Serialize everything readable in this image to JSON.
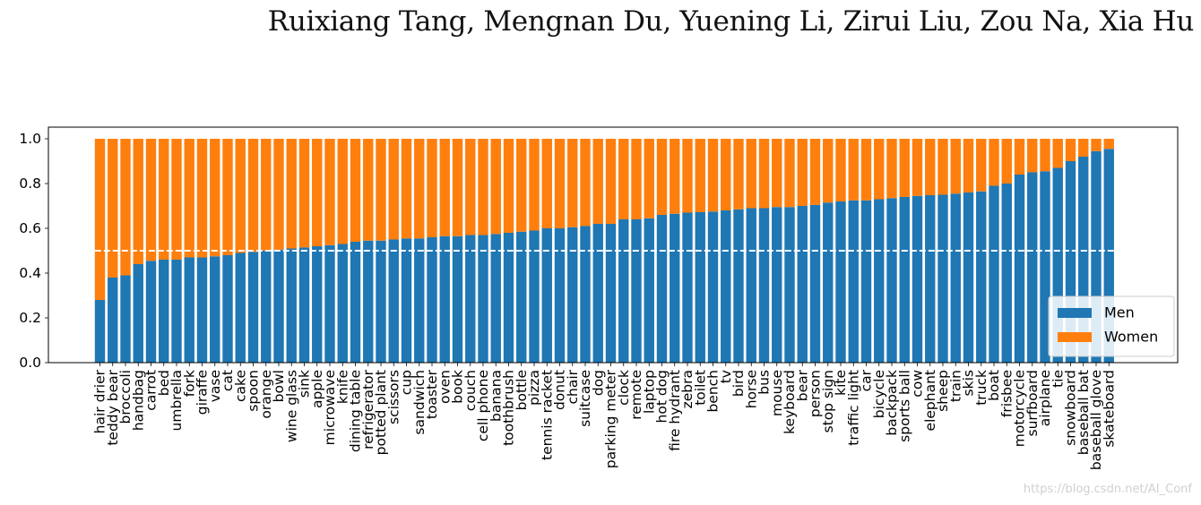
{
  "header": {
    "authors": "Ruixiang Tang, Mengnan Du, Yuening Li, Zirui Liu, Zou Na, Xia Hu"
  },
  "watermark": "https://blog.csdn.net/AI_Conf",
  "colors": {
    "men": "#1f77b4",
    "women": "#ff7f0e",
    "reference_line": "#ffffff"
  },
  "chart_data": {
    "type": "bar",
    "stacked": true,
    "title": "",
    "xlabel": "",
    "ylabel": "",
    "ylim": [
      0,
      1.0
    ],
    "yticks": [
      "0.0",
      "0.2",
      "0.4",
      "0.6",
      "0.8",
      "1.0"
    ],
    "reference_line": 0.5,
    "legend": {
      "position": "lower-right",
      "entries": [
        "Men",
        "Women"
      ]
    },
    "categories": [
      "hair drier",
      "teddy bear",
      "broccoli",
      "handbag",
      "carrot",
      "bed",
      "umbrella",
      "fork",
      "giraffe",
      "vase",
      "cat",
      "cake",
      "spoon",
      "orange",
      "bowl",
      "wine glass",
      "sink",
      "apple",
      "microwave",
      "knife",
      "dining table",
      "refrigerator",
      "potted plant",
      "scissors",
      "cup",
      "sandwich",
      "toaster",
      "oven",
      "book",
      "couch",
      "cell phone",
      "banana",
      "toothbrush",
      "bottle",
      "pizza",
      "tennis racket",
      "donut",
      "chair",
      "suitcase",
      "dog",
      "parking meter",
      "clock",
      "remote",
      "laptop",
      "hot dog",
      "fire hydrant",
      "zebra",
      "toilet",
      "bench",
      "tv",
      "bird",
      "horse",
      "bus",
      "mouse",
      "keyboard",
      "bear",
      "person",
      "stop sign",
      "kite",
      "traffic light",
      "car",
      "bicycle",
      "backpack",
      "sports ball",
      "cow",
      "elephant",
      "sheep",
      "train",
      "skis",
      "truck",
      "boat",
      "frisbee",
      "motorcycle",
      "surfboard",
      "airplane",
      "tie",
      "snowboard",
      "baseball bat",
      "baseball glove",
      "skateboard"
    ],
    "series": [
      {
        "name": "Men",
        "values": [
          0.28,
          0.38,
          0.39,
          0.44,
          0.455,
          0.46,
          0.46,
          0.47,
          0.47,
          0.475,
          0.48,
          0.49,
          0.495,
          0.5,
          0.505,
          0.51,
          0.515,
          0.52,
          0.525,
          0.53,
          0.54,
          0.545,
          0.545,
          0.55,
          0.555,
          0.555,
          0.56,
          0.565,
          0.565,
          0.57,
          0.57,
          0.575,
          0.58,
          0.585,
          0.59,
          0.6,
          0.6,
          0.605,
          0.61,
          0.62,
          0.62,
          0.64,
          0.64,
          0.645,
          0.66,
          0.665,
          0.67,
          0.672,
          0.675,
          0.68,
          0.685,
          0.69,
          0.69,
          0.695,
          0.695,
          0.7,
          0.705,
          0.715,
          0.72,
          0.725,
          0.725,
          0.73,
          0.735,
          0.74,
          0.745,
          0.748,
          0.75,
          0.755,
          0.76,
          0.765,
          0.79,
          0.8,
          0.84,
          0.85,
          0.855,
          0.87,
          0.9,
          0.92,
          0.945,
          0.955
        ]
      },
      {
        "name": "Women",
        "values": [
          0.72,
          0.62,
          0.61,
          0.56,
          0.545,
          0.54,
          0.54,
          0.53,
          0.53,
          0.525,
          0.52,
          0.51,
          0.505,
          0.5,
          0.495,
          0.49,
          0.485,
          0.48,
          0.475,
          0.47,
          0.46,
          0.455,
          0.455,
          0.45,
          0.445,
          0.445,
          0.44,
          0.435,
          0.435,
          0.43,
          0.43,
          0.425,
          0.42,
          0.415,
          0.41,
          0.4,
          0.4,
          0.395,
          0.39,
          0.38,
          0.38,
          0.36,
          0.36,
          0.355,
          0.34,
          0.335,
          0.33,
          0.328,
          0.325,
          0.32,
          0.315,
          0.31,
          0.31,
          0.305,
          0.305,
          0.3,
          0.295,
          0.285,
          0.28,
          0.275,
          0.275,
          0.27,
          0.265,
          0.26,
          0.255,
          0.252,
          0.25,
          0.245,
          0.24,
          0.235,
          0.21,
          0.2,
          0.16,
          0.15,
          0.145,
          0.13,
          0.1,
          0.08,
          0.055,
          0.045
        ]
      }
    ]
  }
}
